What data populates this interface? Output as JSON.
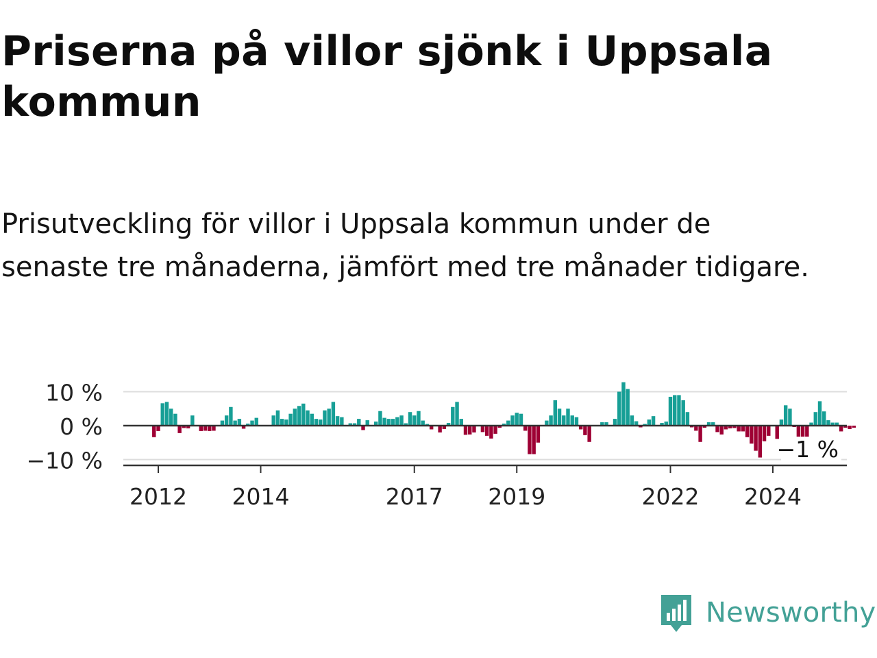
{
  "title": "Priserna på villor sjönk i Uppsala kommun",
  "subtitle": "Prisutveckling för villor i Uppsala kommun under de senaste tre månaderna, jämfört med tre månader tidigare.",
  "brand": "Newsworthy",
  "brand_icon": "newsworthy-logo-icon",
  "colors": {
    "positive": "#179f96",
    "negative": "#9e0034",
    "axis": "#333333",
    "grid": "#dddddd",
    "brand": "#43a196"
  },
  "chart_data": {
    "type": "bar",
    "title": "",
    "xlabel": "",
    "ylabel": "",
    "ylim": [
      -10,
      12
    ],
    "y_ticks": [
      10,
      0,
      -10
    ],
    "y_tick_labels": [
      "10 %",
      "0 %",
      "−10 %"
    ],
    "x_ticks": [
      2012,
      2014,
      2017,
      2019,
      2022,
      2024
    ],
    "x_tick_labels": [
      "2012",
      "2014",
      "2017",
      "2019",
      "2022",
      "2024"
    ],
    "last_value_label": "−1 %",
    "start": "2011-12",
    "frequency": "monthly",
    "values": [
      -3.4,
      -1.6,
      6.6,
      7.0,
      5.0,
      3.5,
      -2.2,
      -0.7,
      -0.8,
      3.0,
      0,
      -1.6,
      -1.5,
      -1.6,
      -1.5,
      0,
      1.5,
      3.0,
      5.5,
      1.5,
      2.0,
      -0.9,
      0.6,
      1.5,
      2.3,
      0,
      0,
      0,
      3.0,
      4.5,
      2.0,
      1.8,
      3.5,
      5.0,
      5.8,
      6.5,
      4.5,
      3.5,
      2.0,
      1.8,
      4.5,
      5.0,
      7.0,
      2.8,
      2.5,
      0,
      0.7,
      0.7,
      2.0,
      -1.3,
      1.6,
      0,
      1.2,
      4.3,
      2.3,
      2.0,
      2.0,
      2.5,
      3.0,
      0.7,
      4.0,
      3.0,
      4.3,
      1.5,
      0.5,
      -1.1,
      0,
      -2.0,
      -1.0,
      0.8,
      5.5,
      7.0,
      2.0,
      -2.7,
      -2.6,
      -2.0,
      0,
      -1.9,
      -3.0,
      -3.8,
      -2.4,
      -0.6,
      0.6,
      1.5,
      3.0,
      3.8,
      3.5,
      -1.5,
      -8.4,
      -8.4,
      -5.0,
      0,
      1.5,
      3.0,
      7.5,
      5.0,
      3.0,
      5.0,
      3.0,
      2.5,
      -1.1,
      -2.8,
      -4.8,
      0,
      0,
      1.0,
      1.0,
      0,
      2.0,
      10.0,
      12.8,
      10.8,
      3.0,
      1.3,
      -0.5,
      0.5,
      1.8,
      2.8,
      0,
      0.8,
      1.2,
      8.5,
      9.0,
      9.0,
      7.5,
      4.0,
      -0.5,
      -1.5,
      -4.8,
      -0.6,
      1.0,
      1.0,
      -1.9,
      -2.6,
      -1.1,
      -0.8,
      -0.7,
      -1.7,
      -1.7,
      -3.4,
      -5.3,
      -7.4,
      -9.4,
      -4.6,
      -3.0,
      0,
      -3.9,
      1.8,
      6.0,
      5.0,
      -0.4,
      -5.6,
      -4.6,
      -3.9,
      0.9,
      4.0,
      7.2,
      4.2,
      1.6,
      0.9,
      0.9,
      -1.7,
      -0.6,
      -1.0,
      -0.6
    ]
  }
}
